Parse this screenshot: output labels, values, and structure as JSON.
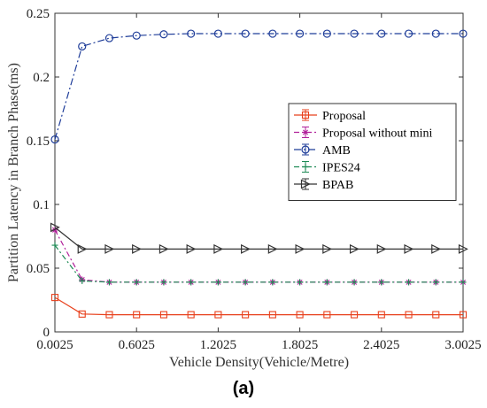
{
  "caption": "(a)",
  "chart_data": {
    "type": "line",
    "xlabel": "Vehicle Density(Vehicle/Metre)",
    "ylabel": "Partition Latency in Branch Phase(ms)",
    "xlim": [
      0.0025,
      3.0025
    ],
    "ylim": [
      0,
      0.25
    ],
    "x_ticks": [
      "0.0025",
      "0.6025",
      "1.2025",
      "1.8025",
      "2.4025",
      "3.0025"
    ],
    "y_ticks": [
      "0",
      "0.05",
      "0.1",
      "0.15",
      "0.2",
      "0.25"
    ],
    "grid": false,
    "legend_position": "right",
    "x": [
      0.0025,
      0.2025,
      0.4025,
      0.6025,
      0.8025,
      1.0025,
      1.2025,
      1.4025,
      1.6025,
      1.8025,
      2.0025,
      2.2025,
      2.4025,
      2.6025,
      2.8025,
      3.0025
    ],
    "series": [
      {
        "name": "Proposal",
        "color": "#e8401c",
        "dash": "",
        "marker": "square",
        "values": [
          0.027,
          0.014,
          0.0135,
          0.0135,
          0.0135,
          0.0135,
          0.0135,
          0.0135,
          0.0135,
          0.0135,
          0.0135,
          0.0135,
          0.0135,
          0.0135,
          0.0135,
          0.0135
        ]
      },
      {
        "name": "Proposal without mini",
        "color": "#b0209a",
        "dash": "6,3,2,3",
        "marker": "star",
        "values": [
          0.08,
          0.041,
          0.039,
          0.039,
          0.039,
          0.039,
          0.039,
          0.039,
          0.039,
          0.039,
          0.039,
          0.039,
          0.039,
          0.039,
          0.039,
          0.039
        ]
      },
      {
        "name": "AMB",
        "color": "#1f3d99",
        "dash": "8,3,2,3",
        "marker": "circle",
        "values": [
          0.151,
          0.224,
          0.2305,
          0.2325,
          0.2335,
          0.234,
          0.234,
          0.234,
          0.234,
          0.234,
          0.234,
          0.234,
          0.234,
          0.234,
          0.234,
          0.234
        ]
      },
      {
        "name": "IPES24",
        "color": "#1e8a55",
        "dash": "6,3,2,3",
        "marker": "plus",
        "values": [
          0.068,
          0.04,
          0.039,
          0.039,
          0.039,
          0.039,
          0.039,
          0.039,
          0.039,
          0.039,
          0.039,
          0.039,
          0.039,
          0.039,
          0.039,
          0.039
        ]
      },
      {
        "name": "BPAB",
        "color": "#333333",
        "dash": "",
        "marker": "triangle-right",
        "values": [
          0.082,
          0.065,
          0.065,
          0.065,
          0.065,
          0.065,
          0.065,
          0.065,
          0.065,
          0.065,
          0.065,
          0.065,
          0.065,
          0.065,
          0.065,
          0.065
        ]
      }
    ]
  }
}
